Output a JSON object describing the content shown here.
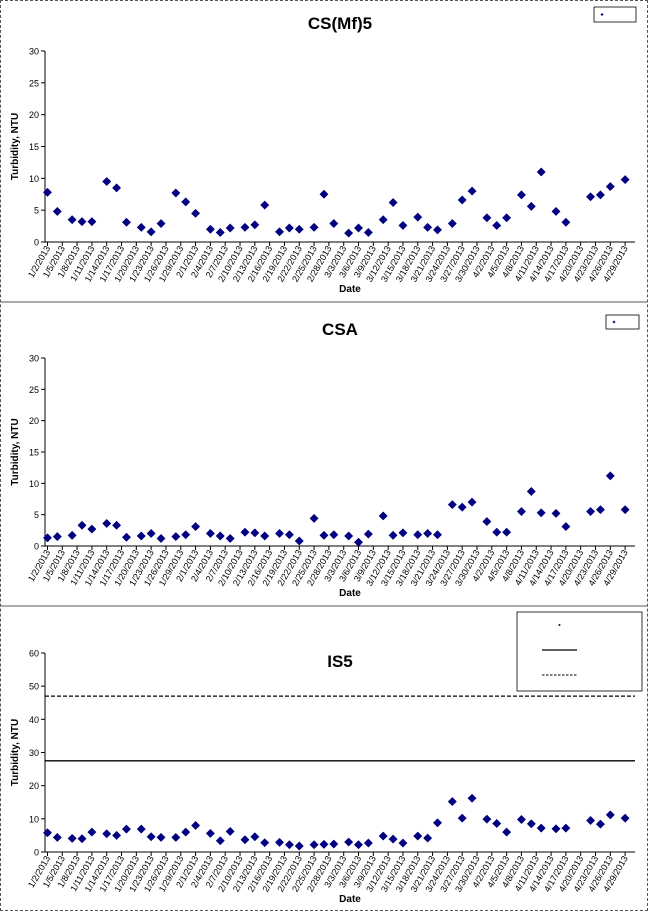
{
  "dates": [
    "1/2/2013",
    "1/5/2013",
    "1/8/2013",
    "1/11/2013",
    "1/14/2013",
    "1/17/2013",
    "1/20/2013",
    "1/23/2013",
    "1/26/2013",
    "1/29/2013",
    "2/1/2013",
    "2/4/2013",
    "2/7/2013",
    "2/10/2013",
    "2/13/2013",
    "2/16/2013",
    "2/19/2013",
    "2/22/2013",
    "2/25/2013",
    "2/28/2013",
    "3/3/2013",
    "3/6/2013",
    "3/9/2013",
    "3/12/2013",
    "3/15/2013",
    "3/18/2013",
    "3/21/2013",
    "3/24/2013",
    "3/27/2013",
    "3/30/2013",
    "4/2/2013",
    "4/5/2013",
    "4/8/2013",
    "4/11/2013",
    "4/14/2013",
    "4/17/2013",
    "4/20/2013",
    "4/23/2013",
    "4/26/2013",
    "4/29/2013"
  ],
  "colors": {
    "marker": "#000080",
    "threshold": "#000000",
    "axis": "#000000"
  },
  "chart_data": [
    {
      "type": "scatter",
      "title": "CS(Mf)5",
      "xlabel": "Date",
      "ylabel": "Turbidity, NTU",
      "ylim": [
        0,
        30
      ],
      "yticks": [
        0,
        5,
        10,
        15,
        20,
        25,
        30
      ],
      "legend": {
        "placement": "top-right",
        "entries": [
          ""
        ]
      },
      "points": [
        [
          "2013-01-02",
          7.8
        ],
        [
          "2013-01-04",
          4.8
        ],
        [
          "2013-01-07",
          3.5
        ],
        [
          "2013-01-09",
          3.2
        ],
        [
          "2013-01-11",
          3.2
        ],
        [
          "2013-01-14",
          9.5
        ],
        [
          "2013-01-16",
          8.5
        ],
        [
          "2013-01-18",
          3.1
        ],
        [
          "2013-01-21",
          2.3
        ],
        [
          "2013-01-23",
          1.6
        ],
        [
          "2013-01-25",
          2.9
        ],
        [
          "2013-01-28",
          7.7
        ],
        [
          "2013-01-30",
          6.3
        ],
        [
          "2013-02-01",
          4.5
        ],
        [
          "2013-02-04",
          2.0
        ],
        [
          "2013-02-06",
          1.5
        ],
        [
          "2013-02-08",
          2.2
        ],
        [
          "2013-02-11",
          2.3
        ],
        [
          "2013-02-13",
          2.7
        ],
        [
          "2013-02-15",
          5.8
        ],
        [
          "2013-02-18",
          1.6
        ],
        [
          "2013-02-20",
          2.2
        ],
        [
          "2013-02-22",
          2.0
        ],
        [
          "2013-02-25",
          2.3
        ],
        [
          "2013-02-27",
          7.5
        ],
        [
          "2013-03-01",
          2.9
        ],
        [
          "2013-03-04",
          1.4
        ],
        [
          "2013-03-06",
          2.2
        ],
        [
          "2013-03-08",
          1.5
        ],
        [
          "2013-03-11",
          3.5
        ],
        [
          "2013-03-13",
          6.2
        ],
        [
          "2013-03-15",
          2.6
        ],
        [
          "2013-03-18",
          3.9
        ],
        [
          "2013-03-20",
          2.3
        ],
        [
          "2013-03-22",
          1.9
        ],
        [
          "2013-03-25",
          2.9
        ],
        [
          "2013-03-27",
          6.6
        ],
        [
          "2013-03-29",
          8.0
        ],
        [
          "2013-04-01",
          3.8
        ],
        [
          "2013-04-03",
          2.6
        ],
        [
          "2013-04-05",
          3.8
        ],
        [
          "2013-04-08",
          7.4
        ],
        [
          "2013-04-10",
          5.6
        ],
        [
          "2013-04-12",
          11.0
        ],
        [
          "2013-04-15",
          4.8
        ],
        [
          "2013-04-17",
          3.1
        ],
        [
          "2013-04-22",
          7.1
        ],
        [
          "2013-04-24",
          7.4
        ],
        [
          "2013-04-26",
          8.7
        ],
        [
          "2013-04-29",
          9.8
        ]
      ],
      "thresholds": []
    },
    {
      "type": "scatter",
      "title": "CSA",
      "xlabel": "Date",
      "ylabel": "Turbidity, NTU",
      "ylim": [
        0,
        30
      ],
      "yticks": [
        0,
        5,
        10,
        15,
        20,
        25,
        30
      ],
      "legend": {
        "placement": "top-right",
        "entries": [
          ""
        ]
      },
      "points": [
        [
          "2013-01-02",
          1.3
        ],
        [
          "2013-01-04",
          1.5
        ],
        [
          "2013-01-07",
          1.7
        ],
        [
          "2013-01-09",
          3.3
        ],
        [
          "2013-01-11",
          2.7
        ],
        [
          "2013-01-14",
          3.6
        ],
        [
          "2013-01-16",
          3.3
        ],
        [
          "2013-01-18",
          1.4
        ],
        [
          "2013-01-21",
          1.6
        ],
        [
          "2013-01-23",
          2.0
        ],
        [
          "2013-01-25",
          1.2
        ],
        [
          "2013-01-28",
          1.5
        ],
        [
          "2013-01-30",
          1.8
        ],
        [
          "2013-02-01",
          3.1
        ],
        [
          "2013-02-04",
          2.0
        ],
        [
          "2013-02-06",
          1.6
        ],
        [
          "2013-02-08",
          1.2
        ],
        [
          "2013-02-11",
          2.2
        ],
        [
          "2013-02-13",
          2.1
        ],
        [
          "2013-02-15",
          1.6
        ],
        [
          "2013-02-18",
          2.0
        ],
        [
          "2013-02-20",
          1.8
        ],
        [
          "2013-02-22",
          0.8
        ],
        [
          "2013-02-25",
          4.4
        ],
        [
          "2013-02-27",
          1.7
        ],
        [
          "2013-03-01",
          1.8
        ],
        [
          "2013-03-04",
          1.6
        ],
        [
          "2013-03-06",
          0.6
        ],
        [
          "2013-03-08",
          1.9
        ],
        [
          "2013-03-11",
          4.8
        ],
        [
          "2013-03-13",
          1.7
        ],
        [
          "2013-03-15",
          2.1
        ],
        [
          "2013-03-18",
          1.8
        ],
        [
          "2013-03-20",
          2.0
        ],
        [
          "2013-03-22",
          1.8
        ],
        [
          "2013-03-25",
          6.6
        ],
        [
          "2013-03-27",
          6.2
        ],
        [
          "2013-03-29",
          7.0
        ],
        [
          "2013-04-01",
          3.9
        ],
        [
          "2013-04-03",
          2.2
        ],
        [
          "2013-04-05",
          2.2
        ],
        [
          "2013-04-08",
          5.5
        ],
        [
          "2013-04-10",
          8.7
        ],
        [
          "2013-04-12",
          5.3
        ],
        [
          "2013-04-15",
          5.2
        ],
        [
          "2013-04-17",
          3.1
        ],
        [
          "2013-04-22",
          5.5
        ],
        [
          "2013-04-24",
          5.8
        ],
        [
          "2013-04-26",
          11.2
        ],
        [
          "2013-04-29",
          5.8
        ]
      ],
      "thresholds": []
    },
    {
      "type": "scatter",
      "title": "IS5",
      "xlabel": "Date",
      "ylabel": "Turbidity, NTU",
      "ylim": [
        0,
        60
      ],
      "yticks": [
        0,
        10,
        20,
        30,
        40,
        50,
        60
      ],
      "legend": {
        "placement": "top-right",
        "entries": [
          "",
          "",
          ""
        ]
      },
      "points": [
        [
          "2013-01-02",
          5.8
        ],
        [
          "2013-01-04",
          4.4
        ],
        [
          "2013-01-07",
          4.1
        ],
        [
          "2013-01-09",
          4.0
        ],
        [
          "2013-01-11",
          6.0
        ],
        [
          "2013-01-14",
          5.5
        ],
        [
          "2013-01-16",
          5.0
        ],
        [
          "2013-01-18",
          6.9
        ],
        [
          "2013-01-21",
          6.9
        ],
        [
          "2013-01-23",
          4.6
        ],
        [
          "2013-01-25",
          4.4
        ],
        [
          "2013-01-28",
          4.4
        ],
        [
          "2013-01-30",
          6.0
        ],
        [
          "2013-02-01",
          8.0
        ],
        [
          "2013-02-04",
          5.6
        ],
        [
          "2013-02-06",
          3.4
        ],
        [
          "2013-02-08",
          6.2
        ],
        [
          "2013-02-11",
          3.7
        ],
        [
          "2013-02-13",
          4.6
        ],
        [
          "2013-02-15",
          2.8
        ],
        [
          "2013-02-18",
          2.9
        ],
        [
          "2013-02-20",
          2.2
        ],
        [
          "2013-02-22",
          1.8
        ],
        [
          "2013-02-25",
          2.2
        ],
        [
          "2013-02-27",
          2.3
        ],
        [
          "2013-03-01",
          2.4
        ],
        [
          "2013-03-04",
          3.0
        ],
        [
          "2013-03-06",
          2.2
        ],
        [
          "2013-03-08",
          2.7
        ],
        [
          "2013-03-11",
          4.8
        ],
        [
          "2013-03-13",
          3.9
        ],
        [
          "2013-03-15",
          2.7
        ],
        [
          "2013-03-18",
          4.8
        ],
        [
          "2013-03-20",
          4.2
        ],
        [
          "2013-03-22",
          8.8
        ],
        [
          "2013-03-25",
          15.2
        ],
        [
          "2013-03-27",
          10.2
        ],
        [
          "2013-03-29",
          16.2
        ],
        [
          "2013-04-01",
          9.9
        ],
        [
          "2013-04-03",
          8.6
        ],
        [
          "2013-04-05",
          6.0
        ],
        [
          "2013-04-08",
          9.8
        ],
        [
          "2013-04-10",
          8.5
        ],
        [
          "2013-04-12",
          7.2
        ],
        [
          "2013-04-15",
          7.0
        ],
        [
          "2013-04-17",
          7.2
        ],
        [
          "2013-04-22",
          9.5
        ],
        [
          "2013-04-24",
          8.4
        ],
        [
          "2013-04-26",
          11.2
        ],
        [
          "2013-04-29",
          10.2
        ]
      ],
      "thresholds": [
        {
          "value": 27.5,
          "style": "solid"
        },
        {
          "value": 47.0,
          "style": "dashed"
        }
      ]
    }
  ]
}
